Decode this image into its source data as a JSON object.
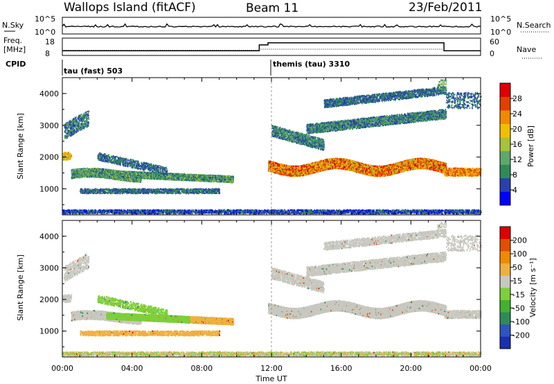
{
  "header": {
    "station": "Wallops Island (fitACF)",
    "beam": "Beam 11",
    "date": "23/Feb/2011"
  },
  "strips": {
    "nsky_label": "N.Sky",
    "nsky_top": "10^5",
    "nsky_bottom": "10^0",
    "nsearch_label": "N.Search",
    "nsearch_top": "10^5",
    "nsearch_bottom": "10^0",
    "freq_label_1": "Freq.",
    "freq_label_2": "[MHz]",
    "freq_top": "18",
    "freq_bottom": "8",
    "nave_label": "Nave",
    "nave_top": "60",
    "nave_bottom": "0",
    "cpid_label": "CPID",
    "cpid_mode_1": "tau (fast) 503",
    "cpid_mode_2": "themis (tau) 3310"
  },
  "colors": {
    "frame": "#000000",
    "dashed_marker": "#999999"
  },
  "chart_data": [
    {
      "type": "heatmap",
      "name": "power",
      "ylabel": "Slant Range [km]",
      "xlabel": "Time UT",
      "xlim": [
        "00:00",
        "24:00"
      ],
      "ylim": [
        180,
        4500
      ],
      "yticks": [
        "1000",
        "2000",
        "3000",
        "4000"
      ],
      "xticks": [
        "00:00",
        "04:00",
        "08:00",
        "12:00",
        "16:00",
        "20:00",
        "00:00"
      ],
      "colorbar_label": "Power [dB]",
      "colorbar_ticks": [
        "4",
        "8",
        "12",
        "16",
        "20",
        "24",
        "28"
      ],
      "colorbar_colors": [
        "#0000ff",
        "#2a3fae",
        "#2e8b57",
        "#5fa86a",
        "#a8c23a",
        "#f0c000",
        "#f08a00",
        "#e04000",
        "#e00000"
      ]
    },
    {
      "type": "heatmap",
      "name": "velocity",
      "ylabel": "Slant Range [km]",
      "xlabel": "Time UT",
      "xlim": [
        "00:00",
        "24:00"
      ],
      "ylim": [
        180,
        4500
      ],
      "yticks": [
        "1000",
        "2000",
        "3000",
        "4000"
      ],
      "xticks": [
        "00:00",
        "04:00",
        "08:00",
        "12:00",
        "16:00",
        "20:00",
        "00:00"
      ],
      "colorbar_label": "Velocity [m s⁻¹]",
      "colorbar_ticks": [
        "200",
        "100",
        "50",
        "15",
        "-15",
        "-50",
        "-100",
        "-200"
      ],
      "colorbar_colors": [
        "#1a2fb0",
        "#2e55c0",
        "#2e8b57",
        "#44b030",
        "#7dd03a",
        "#c8c8c0",
        "#f0b040",
        "#f08a00",
        "#e05000",
        "#e00000"
      ]
    }
  ],
  "time_axis": {
    "label": "Time UT",
    "ticks": [
      "00:00",
      "04:00",
      "08:00",
      "12:00",
      "16:00",
      "20:00",
      "00:00"
    ]
  }
}
